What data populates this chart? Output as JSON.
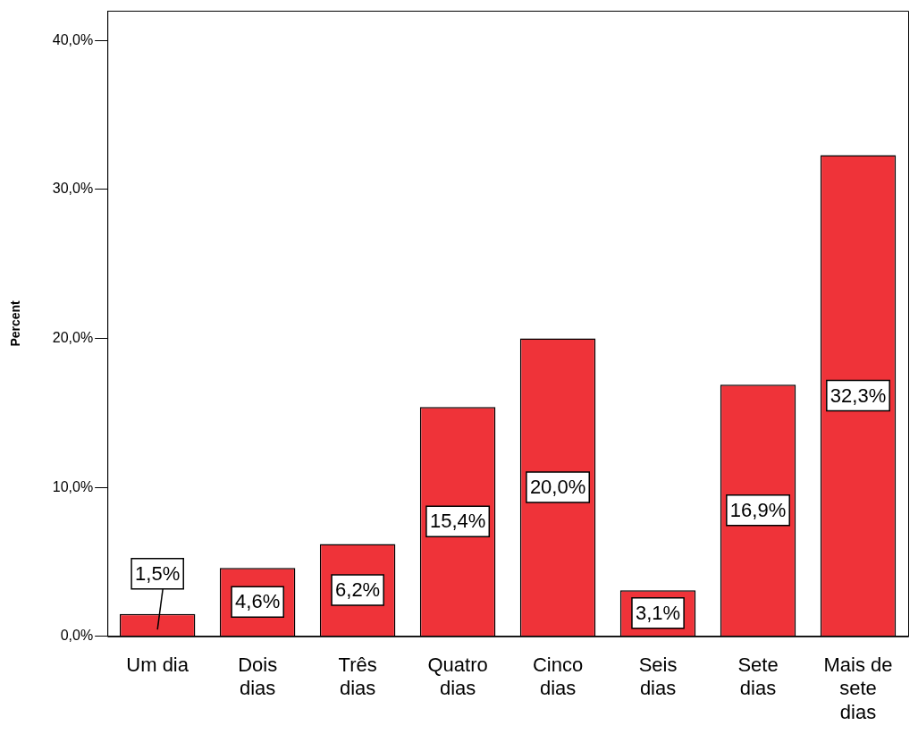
{
  "chart_data": {
    "type": "bar",
    "ylabel": "Percent",
    "categories": [
      "Um dia",
      "Dois dias",
      "Três dias",
      "Quatro dias",
      "Cinco dias",
      "Seis dias",
      "Sete dias",
      "Mais de sete dias"
    ],
    "values": [
      1.5,
      4.6,
      6.2,
      15.4,
      20.0,
      3.1,
      16.9,
      32.3
    ],
    "value_labels": [
      "1,5%",
      "4,6%",
      "6,2%",
      "15,4%",
      "20,0%",
      "3,1%",
      "16,9%",
      "32,3%"
    ],
    "color": "#ef3339",
    "ylim": [
      0,
      42
    ],
    "yticks": [
      {
        "value": 0,
        "label": "0,0%"
      },
      {
        "value": 10,
        "label": "10,0%"
      },
      {
        "value": 20,
        "label": "20,0%"
      },
      {
        "value": 30,
        "label": "30,0%"
      },
      {
        "value": 40,
        "label": "40,0%"
      }
    ],
    "grid": false,
    "legend": false
  }
}
